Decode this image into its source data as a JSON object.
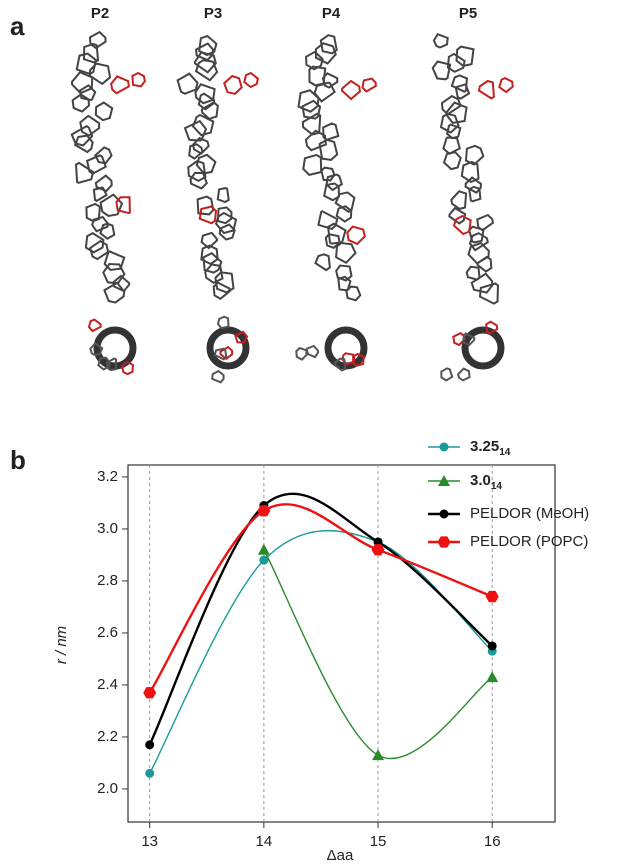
{
  "panel_labels": [
    "a",
    "b"
  ],
  "structure_labels": [
    "P2",
    "P3",
    "P4",
    "P5"
  ],
  "chart_data": {
    "type": "line",
    "x_label": "Δaa",
    "y_label": "r / nm",
    "x": [
      13,
      14,
      15,
      16
    ],
    "series": [
      {
        "name": "3.25",
        "subscript": "14",
        "color": "#1b9a9a",
        "marker": "circle",
        "values": [
          2.06,
          2.88,
          2.95,
          2.53
        ]
      },
      {
        "name": "3.0",
        "subscript": "14",
        "color": "#2a8a2a",
        "marker": "triangle",
        "values": [
          null,
          2.92,
          2.13,
          2.43
        ]
      },
      {
        "name": "PELDOR (MeOH)",
        "color": "#000000",
        "marker": "circle",
        "values": [
          2.17,
          3.09,
          2.95,
          2.55
        ]
      },
      {
        "name": "PELDOR (POPC)",
        "color": "#ee1111",
        "marker": "hexagon",
        "values": [
          2.37,
          3.07,
          2.92,
          2.74
        ]
      }
    ],
    "xlim": [
      12.81,
      16.55
    ],
    "xticks": [
      13,
      14,
      15,
      16
    ],
    "ylim": [
      1.873,
      3.246
    ],
    "yticks": [
      {
        "value": 2,
        "label": "2.0"
      },
      2.2,
      2.4,
      2.6,
      2.8,
      {
        "value": 3,
        "label": "3.0"
      },
      3.2
    ],
    "grid": "x",
    "legend": "upper right"
  }
}
